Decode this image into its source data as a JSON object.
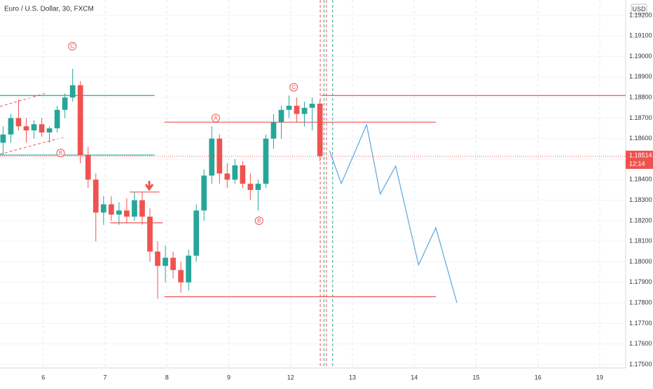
{
  "chart_data": {
    "type": "candlestick",
    "title": "Euro / U.S. Dollar, 30, FXCM",
    "currency": "USD",
    "xlim": [
      -0.7,
      9.42
    ],
    "ylim": [
      1.17483,
      1.19275
    ],
    "xticks": [
      {
        "value": 0,
        "label": "6"
      },
      {
        "value": 1,
        "label": "7"
      },
      {
        "value": 2,
        "label": "8"
      },
      {
        "value": 3,
        "label": "9"
      },
      {
        "value": 4,
        "label": "12"
      },
      {
        "value": 5,
        "label": "13"
      },
      {
        "value": 6,
        "label": "14"
      },
      {
        "value": 7,
        "label": "15"
      },
      {
        "value": 8,
        "label": "16"
      },
      {
        "value": 9,
        "label": "19"
      }
    ],
    "yticks": [
      {
        "value": 1.175,
        "label": "1.17500"
      },
      {
        "value": 1.176,
        "label": "1.17600"
      },
      {
        "value": 1.177,
        "label": "1.17700"
      },
      {
        "value": 1.178,
        "label": "1.17800"
      },
      {
        "value": 1.179,
        "label": "1.17900"
      },
      {
        "value": 1.18,
        "label": "1.18000"
      },
      {
        "value": 1.181,
        "label": "1.18100"
      },
      {
        "value": 1.182,
        "label": "1.18200"
      },
      {
        "value": 1.183,
        "label": "1.18300"
      },
      {
        "value": 1.184,
        "label": "1.18400"
      },
      {
        "value": 1.185,
        "label": "1.18500"
      },
      {
        "value": 1.186,
        "label": "1.18600"
      },
      {
        "value": 1.187,
        "label": "1.18700"
      },
      {
        "value": 1.188,
        "label": "1.18800"
      },
      {
        "value": 1.189,
        "label": "1.18900"
      },
      {
        "value": 1.19,
        "label": "1.19000"
      },
      {
        "value": 1.191,
        "label": "1.19100"
      },
      {
        "value": 1.192,
        "label": "1.19200"
      }
    ],
    "grid": true,
    "up_color": "#26a69a",
    "down_color": "#ef5350",
    "x": [
      -0.65,
      -0.525,
      -0.4,
      -0.275,
      -0.15,
      -0.025,
      0.1,
      0.225,
      0.35,
      0.475,
      0.6,
      0.725,
      0.85,
      0.975,
      1.1,
      1.225,
      1.35,
      1.475,
      1.6,
      1.725,
      1.85,
      1.975,
      2.1,
      2.225,
      2.35,
      2.475,
      2.6,
      2.725,
      2.85,
      2.975,
      3.1,
      3.225,
      3.35,
      3.475,
      3.6,
      3.725,
      3.85,
      3.975,
      4.1,
      4.225,
      4.35,
      4.475
    ],
    "open": [
      1.1858,
      1.1862,
      1.187,
      1.1866,
      1.1864,
      1.1867,
      1.1863,
      1.1865,
      1.1874,
      1.188,
      1.1886,
      1.1852,
      1.184,
      1.1824,
      1.1828,
      1.1823,
      1.1825,
      1.1822,
      1.183,
      1.1822,
      1.1805,
      1.1798,
      1.1802,
      1.1796,
      1.179,
      1.1803,
      1.1825,
      1.1842,
      1.186,
      1.1843,
      1.184,
      1.1847,
      1.1838,
      1.1835,
      1.1838,
      1.186,
      1.1868,
      1.1874,
      1.1876,
      1.1872,
      1.1875,
      1.1877
    ],
    "high": [
      1.1866,
      1.1872,
      1.1879,
      1.187,
      1.1869,
      1.187,
      1.1866,
      1.1876,
      1.1882,
      1.1894,
      1.1888,
      1.1856,
      1.1843,
      1.1832,
      1.1832,
      1.1829,
      1.1831,
      1.1834,
      1.1834,
      1.1826,
      1.181,
      1.1808,
      1.1805,
      1.18,
      1.1806,
      1.1828,
      1.1845,
      1.1866,
      1.1862,
      1.1848,
      1.185,
      1.1849,
      1.1843,
      1.184,
      1.1862,
      1.1872,
      1.1876,
      1.1881,
      1.188,
      1.1878,
      1.188,
      1.1879
    ],
    "low": [
      1.1852,
      1.1858,
      1.1864,
      1.1858,
      1.186,
      1.1861,
      1.1858,
      1.1863,
      1.187,
      1.1878,
      1.1848,
      1.1836,
      1.181,
      1.1818,
      1.182,
      1.1818,
      1.1819,
      1.182,
      1.1818,
      1.18,
      1.1782,
      1.179,
      1.1792,
      1.1785,
      1.1786,
      1.18,
      1.182,
      1.1838,
      1.1838,
      1.1836,
      1.1838,
      1.1836,
      1.183,
      1.1825,
      1.1836,
      1.1855,
      1.186,
      1.187,
      1.1868,
      1.1866,
      1.1864,
      1.1849
    ],
    "close": [
      1.1862,
      1.187,
      1.1866,
      1.1864,
      1.1867,
      1.1863,
      1.1865,
      1.1874,
      1.188,
      1.1886,
      1.1852,
      1.184,
      1.1824,
      1.1828,
      1.1823,
      1.1825,
      1.1822,
      1.183,
      1.1822,
      1.1805,
      1.1798,
      1.1802,
      1.1796,
      1.179,
      1.1803,
      1.1825,
      1.1842,
      1.186,
      1.1843,
      1.184,
      1.1847,
      1.1838,
      1.1835,
      1.1838,
      1.186,
      1.1868,
      1.1874,
      1.1876,
      1.1872,
      1.1875,
      1.1877,
      1.18514
    ],
    "last_price": 1.18514,
    "countdown": "12:14",
    "levels": [
      {
        "price": 1.1881,
        "from": -0.7,
        "to": 1.8,
        "color": "#26a69a"
      },
      {
        "price": 1.1852,
        "from": -0.7,
        "to": 1.8,
        "color": "#26a69a"
      },
      {
        "price": 1.1881,
        "from": 4.5,
        "to": 9.42,
        "color": "#ef5350"
      },
      {
        "price": 1.1868,
        "from": 1.96,
        "to": 6.35,
        "color": "#ef5350"
      },
      {
        "price": 1.1783,
        "from": 1.96,
        "to": 6.35,
        "color": "#ef5350"
      },
      {
        "price": 1.1834,
        "from": 1.4,
        "to": 1.88,
        "color": "#ef5350"
      },
      {
        "price": 1.1819,
        "from": 1.08,
        "to": 1.93,
        "color": "#ef5350"
      }
    ],
    "vlines": [
      {
        "x": 4.48,
        "color": "#ef5350"
      },
      {
        "x": 4.54,
        "color": "#26a69a"
      },
      {
        "x": 4.58,
        "color": "#ef5350"
      },
      {
        "x": 4.68,
        "color": "#26a69a"
      }
    ],
    "projection": {
      "color": "#5aa7de",
      "x": [
        4.63,
        4.82,
        5.23,
        5.45,
        5.7,
        6.07,
        6.35,
        6.69
      ],
      "values": [
        1.18541,
        1.18381,
        1.18668,
        1.1833,
        1.18466,
        1.17985,
        1.18166,
        1.178
      ]
    },
    "annotations": [
      {
        "text": "C",
        "x": 0.47,
        "price": 1.1905
      },
      {
        "text": "B",
        "x": 0.28,
        "price": 1.1853
      },
      {
        "text": "A",
        "x": 2.79,
        "price": 1.187
      },
      {
        "text": "B",
        "x": 3.49,
        "price": 1.182
      },
      {
        "text": "C",
        "x": 4.05,
        "price": 1.1885
      }
    ]
  }
}
